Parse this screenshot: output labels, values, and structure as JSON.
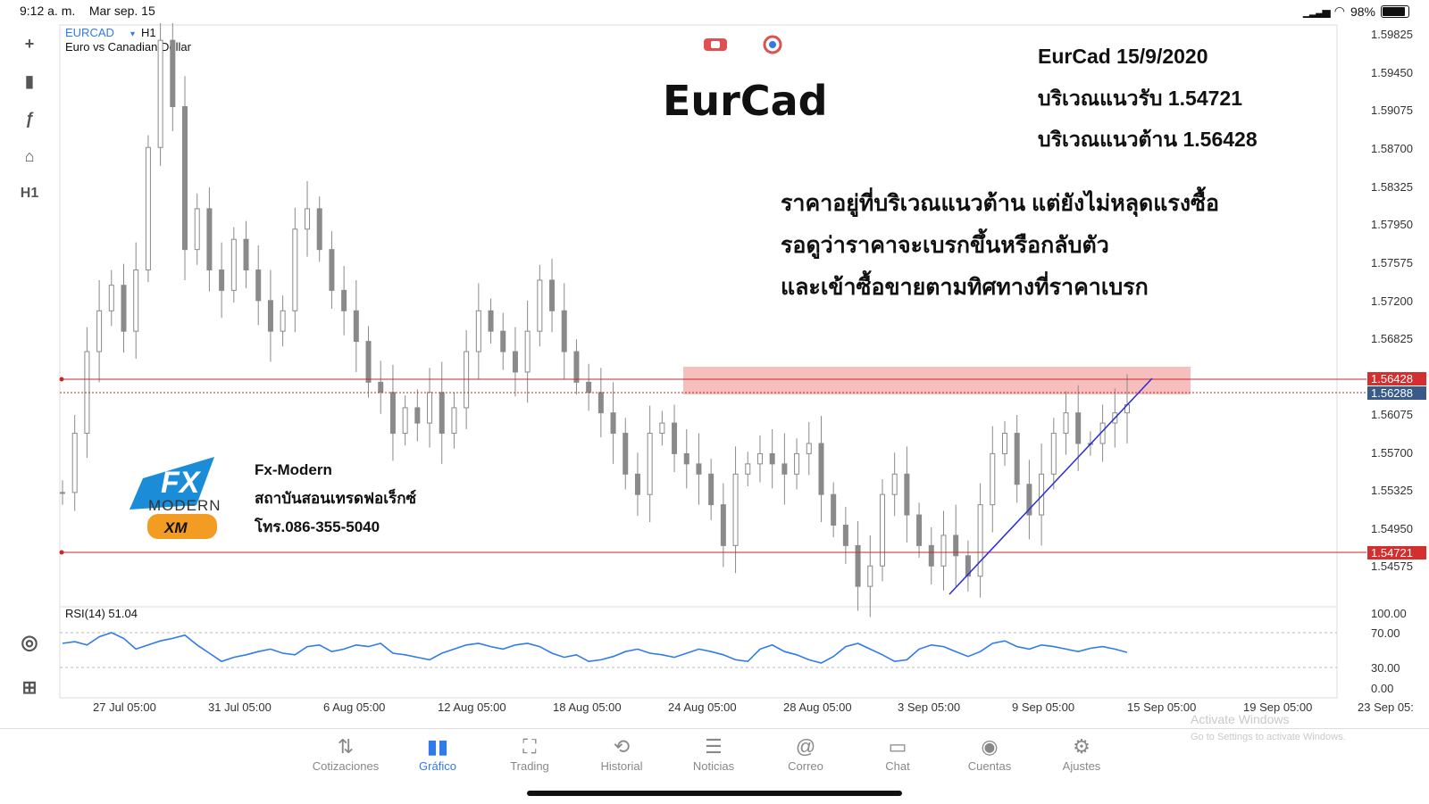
{
  "status": {
    "time": "9:12 a. m.",
    "date": "Mar sep. 15",
    "battery": "98%",
    "battery_level": 0.98
  },
  "symbol": {
    "ticker": "EURCAD",
    "timeframe": "H1",
    "description": "Euro vs Canadian Dollar"
  },
  "left_tools": [
    {
      "icon": "crosshair-icon",
      "glyph": "+"
    },
    {
      "icon": "candles-icon",
      "glyph": "▮"
    },
    {
      "icon": "function-icon",
      "glyph": "ƒ"
    },
    {
      "icon": "shapes-icon",
      "glyph": "⌂"
    },
    {
      "icon": "timeframe-label",
      "glyph": "H1"
    }
  ],
  "annotation": {
    "big_title": "EurCad",
    "date_line": "EurCad 15/9/2020",
    "support_line": "บริเวณแนวรับ 1.54721",
    "resistance_line": "บริเวณแนวต้าน 1.56428",
    "note1": "ราคาอยู่ที่บริเวณแนวต้าน แต่ยังไม่หลุดแรงซื้อ",
    "note2": "รอดูว่าราคาจะเบรกขึ้นหรือกลับตัว",
    "note3": "และเข้าซื้อขายตามทิศทางที่ราคาเบรก"
  },
  "logo": {
    "name": "Fx-Modern",
    "subtitle": "สถาบันสอนเทรดฟอเร็กซ์",
    "phone": "โทร.086-355-5040",
    "brand_text": "MODERN",
    "sponsor": "XM"
  },
  "price_axis": {
    "ticks": [
      "1.59825",
      "1.59450",
      "1.59075",
      "1.58700",
      "1.58325",
      "1.57950",
      "1.57575",
      "1.57200",
      "1.56825",
      "1.56075",
      "1.55700",
      "1.55325",
      "1.54950",
      "1.54575"
    ],
    "resistance_tag": "1.56428",
    "current_tag": "1.56288",
    "support_tag": "1.54721"
  },
  "rsi": {
    "label": "RSI(14) 51.04",
    "ticks": [
      "100.00",
      "70.00",
      "30.00",
      "0.00"
    ]
  },
  "time_axis": [
    "27 Jul 05:00",
    "31 Jul 05:00",
    "6 Aug 05:00",
    "12 Aug 05:00",
    "18 Aug 05:00",
    "24 Aug 05:00",
    "28 Aug 05:00",
    "3 Sep 05:00",
    "9 Sep 05:00",
    "15 Sep 05:00",
    "19 Sep 05:00",
    "23 Sep 05:"
  ],
  "watermark": {
    "line1": "Activate Windows",
    "line2": "Go to Settings to activate Windows."
  },
  "bottom_nav": [
    {
      "label": "Cotizaciones",
      "icon": "quotes-icon",
      "glyph": "⇅",
      "active": false
    },
    {
      "label": "Gráfico",
      "icon": "chart-icon",
      "glyph": "▮▮",
      "active": true
    },
    {
      "label": "Trading",
      "icon": "trading-icon",
      "glyph": "⛶",
      "active": false
    },
    {
      "label": "Historial",
      "icon": "history-icon",
      "glyph": "⟲",
      "active": false
    },
    {
      "label": "Noticias",
      "icon": "news-icon",
      "glyph": "☰",
      "active": false
    },
    {
      "label": "Correo",
      "icon": "mail-icon",
      "glyph": "@",
      "active": false
    },
    {
      "label": "Chat",
      "icon": "chat-icon",
      "glyph": "▭",
      "active": false
    },
    {
      "label": "Cuentas",
      "icon": "account-icon",
      "glyph": "◉",
      "active": false
    },
    {
      "label": "Ajustes",
      "icon": "settings-icon",
      "glyph": "⚙",
      "active": false
    }
  ],
  "colors": {
    "candle": "#8a8a8a",
    "support_resistance": "#c62828",
    "zone": "#f4a8a8",
    "trendline": "#2a2ad6",
    "rsi_line": "#2f7bea",
    "current_tag_bg": "#3a5a8a",
    "accent": "#2f7bea"
  },
  "chart_data": {
    "type": "candlestick",
    "symbol": "EURCAD",
    "timeframe": "H1",
    "y_range": [
      1.543,
      1.6
    ],
    "resistance": 1.56428,
    "support": 1.54721,
    "current": 1.56288,
    "closes": [
      1.5542,
      1.56,
      1.568,
      1.572,
      1.5745,
      1.57,
      1.576,
      1.588,
      1.5985,
      1.592,
      1.578,
      1.582,
      1.576,
      1.574,
      1.579,
      1.576,
      1.573,
      1.57,
      1.572,
      1.58,
      1.582,
      1.578,
      1.574,
      1.572,
      1.569,
      1.565,
      1.564,
      1.56,
      1.5625,
      1.561,
      1.564,
      1.56,
      1.5625,
      1.568,
      1.572,
      1.57,
      1.568,
      1.566,
      1.57,
      1.575,
      1.572,
      1.568,
      1.565,
      1.564,
      1.562,
      1.56,
      1.556,
      1.554,
      1.56,
      1.561,
      1.558,
      1.557,
      1.556,
      1.553,
      1.549,
      1.556,
      1.557,
      1.558,
      1.557,
      1.556,
      1.558,
      1.559,
      1.554,
      1.551,
      1.549,
      1.545,
      1.547,
      1.554,
      1.556,
      1.552,
      1.549,
      1.547,
      1.55,
      1.548,
      1.546,
      1.553,
      1.558,
      1.56,
      1.555,
      1.552,
      1.556,
      1.56,
      1.562,
      1.559,
      1.559,
      1.561,
      1.562,
      1.5628
    ],
    "rsi_values": [
      62,
      64,
      60,
      70,
      75,
      68,
      55,
      60,
      65,
      68,
      72,
      60,
      50,
      40,
      45,
      48,
      52,
      55,
      50,
      48,
      58,
      60,
      52,
      55,
      60,
      58,
      62,
      50,
      48,
      45,
      42,
      50,
      55,
      60,
      62,
      58,
      55,
      60,
      62,
      58,
      50,
      45,
      48,
      40,
      42,
      46,
      52,
      55,
      50,
      48,
      45,
      50,
      55,
      52,
      48,
      42,
      40,
      55,
      60,
      52,
      48,
      42,
      38,
      46,
      58,
      62,
      55,
      48,
      40,
      42,
      55,
      60,
      58,
      52,
      46,
      52,
      62,
      65,
      58,
      55,
      60,
      58,
      55,
      52,
      56,
      58,
      55,
      51
    ]
  }
}
